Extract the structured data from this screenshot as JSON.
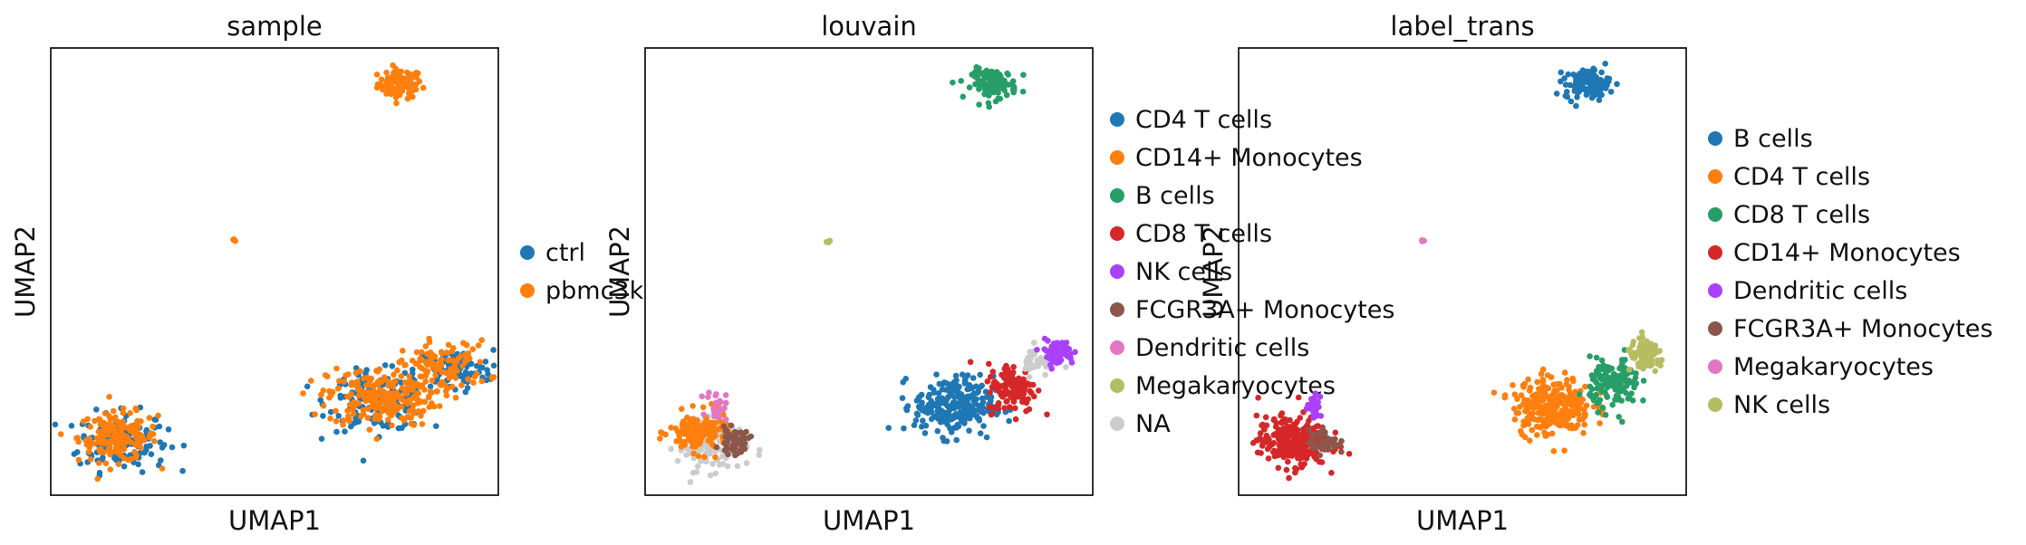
{
  "chart_data": [
    {
      "type": "scatter",
      "title": "sample",
      "xlabel": "UMAP1",
      "ylabel": "UMAP2",
      "grid": false,
      "legend_position": "right",
      "series": [
        {
          "name": "ctrl",
          "color": "#1f77b4"
        },
        {
          "name": "pbmc3k",
          "color": "#ff7f0e"
        }
      ],
      "clusters": [
        {
          "series": "pbmc3k",
          "x": 0.78,
          "y": 0.92,
          "spread": [
            0.045,
            0.03
          ],
          "n": 90
        },
        {
          "series": "pbmc3k",
          "x": 0.41,
          "y": 0.57,
          "spread": [
            0.004,
            0.004
          ],
          "n": 4
        },
        {
          "series": "ctrl",
          "x": 0.16,
          "y": 0.12,
          "spread": [
            0.09,
            0.06
          ],
          "n": 140
        },
        {
          "series": "pbmc3k",
          "x": 0.15,
          "y": 0.13,
          "spread": [
            0.08,
            0.05
          ],
          "n": 160
        },
        {
          "series": "ctrl",
          "x": 0.73,
          "y": 0.21,
          "spread": [
            0.1,
            0.06
          ],
          "n": 150
        },
        {
          "series": "ctrl",
          "x": 0.9,
          "y": 0.28,
          "spread": [
            0.08,
            0.04
          ],
          "n": 90
        },
        {
          "series": "pbmc3k",
          "x": 0.74,
          "y": 0.22,
          "spread": [
            0.11,
            0.06
          ],
          "n": 240
        },
        {
          "series": "pbmc3k",
          "x": 0.88,
          "y": 0.29,
          "spread": [
            0.09,
            0.05
          ],
          "n": 100
        }
      ]
    },
    {
      "type": "scatter",
      "title": "louvain",
      "xlabel": "UMAP1",
      "ylabel": "UMAP2",
      "grid": false,
      "legend_position": "right",
      "series": [
        {
          "name": "CD4 T cells",
          "color": "#1f77b4"
        },
        {
          "name": "CD14+ Monocytes",
          "color": "#ff7f0e"
        },
        {
          "name": "B cells",
          "color": "#279e68"
        },
        {
          "name": "CD8 T cells",
          "color": "#d62728"
        },
        {
          "name": "NK cells",
          "color": "#aa40fc"
        },
        {
          "name": "FCGR3A+ Monocytes",
          "color": "#8c564b"
        },
        {
          "name": "Dendritic cells",
          "color": "#e377c2"
        },
        {
          "name": "Megakaryocytes",
          "color": "#b5bd61"
        },
        {
          "name": "NA",
          "color": "#cccccc"
        }
      ],
      "clusters": [
        {
          "series": "B cells",
          "x": 0.78,
          "y": 0.92,
          "spread": [
            0.045,
            0.03
          ],
          "n": 120
        },
        {
          "series": "Megakaryocytes",
          "x": 0.41,
          "y": 0.57,
          "spread": [
            0.004,
            0.004
          ],
          "n": 4
        },
        {
          "series": "NA",
          "x": 0.15,
          "y": 0.11,
          "spread": [
            0.07,
            0.05
          ],
          "n": 120
        },
        {
          "series": "CD14+ Monocytes",
          "x": 0.12,
          "y": 0.14,
          "spread": [
            0.06,
            0.04
          ],
          "n": 150
        },
        {
          "series": "FCGR3A+ Monocytes",
          "x": 0.2,
          "y": 0.12,
          "spread": [
            0.03,
            0.025
          ],
          "n": 50
        },
        {
          "series": "Dendritic cells",
          "x": 0.16,
          "y": 0.2,
          "spread": [
            0.02,
            0.03
          ],
          "n": 25
        },
        {
          "series": "CD4 T cells",
          "x": 0.69,
          "y": 0.2,
          "spread": [
            0.08,
            0.06
          ],
          "n": 260
        },
        {
          "series": "CD8 T cells",
          "x": 0.82,
          "y": 0.24,
          "spread": [
            0.05,
            0.05
          ],
          "n": 130
        },
        {
          "series": "NA",
          "x": 0.88,
          "y": 0.3,
          "spread": [
            0.04,
            0.03
          ],
          "n": 40
        },
        {
          "series": "NK cells",
          "x": 0.92,
          "y": 0.32,
          "spread": [
            0.035,
            0.025
          ],
          "n": 70
        }
      ]
    },
    {
      "type": "scatter",
      "title": "label_trans",
      "xlabel": "UMAP1",
      "ylabel": "UMAP2",
      "grid": false,
      "legend_position": "right",
      "series": [
        {
          "name": "B cells",
          "color": "#1f77b4"
        },
        {
          "name": "CD4 T cells",
          "color": "#ff7f0e"
        },
        {
          "name": "CD8 T cells",
          "color": "#279e68"
        },
        {
          "name": "CD14+ Monocytes",
          "color": "#d62728"
        },
        {
          "name": "Dendritic cells",
          "color": "#aa40fc"
        },
        {
          "name": "FCGR3A+ Monocytes",
          "color": "#8c564b"
        },
        {
          "name": "Megakaryocytes",
          "color": "#e377c2"
        },
        {
          "name": "NK cells",
          "color": "#b5bd61"
        }
      ],
      "clusters": [
        {
          "series": "B cells",
          "x": 0.78,
          "y": 0.92,
          "spread": [
            0.045,
            0.03
          ],
          "n": 120
        },
        {
          "series": "Megakaryocytes",
          "x": 0.41,
          "y": 0.57,
          "spread": [
            0.004,
            0.004
          ],
          "n": 4
        },
        {
          "series": "CD14+ Monocytes",
          "x": 0.12,
          "y": 0.12,
          "spread": [
            0.07,
            0.05
          ],
          "n": 280
        },
        {
          "series": "FCGR3A+ Monocytes",
          "x": 0.19,
          "y": 0.12,
          "spread": [
            0.03,
            0.025
          ],
          "n": 50
        },
        {
          "series": "Dendritic cells",
          "x": 0.17,
          "y": 0.2,
          "spread": [
            0.015,
            0.025
          ],
          "n": 20
        },
        {
          "series": "CD4 T cells",
          "x": 0.7,
          "y": 0.2,
          "spread": [
            0.08,
            0.06
          ],
          "n": 260
        },
        {
          "series": "CD8 T cells",
          "x": 0.84,
          "y": 0.25,
          "spread": [
            0.05,
            0.05
          ],
          "n": 140
        },
        {
          "series": "NK cells",
          "x": 0.91,
          "y": 0.31,
          "spread": [
            0.04,
            0.03
          ],
          "n": 80
        }
      ]
    }
  ]
}
